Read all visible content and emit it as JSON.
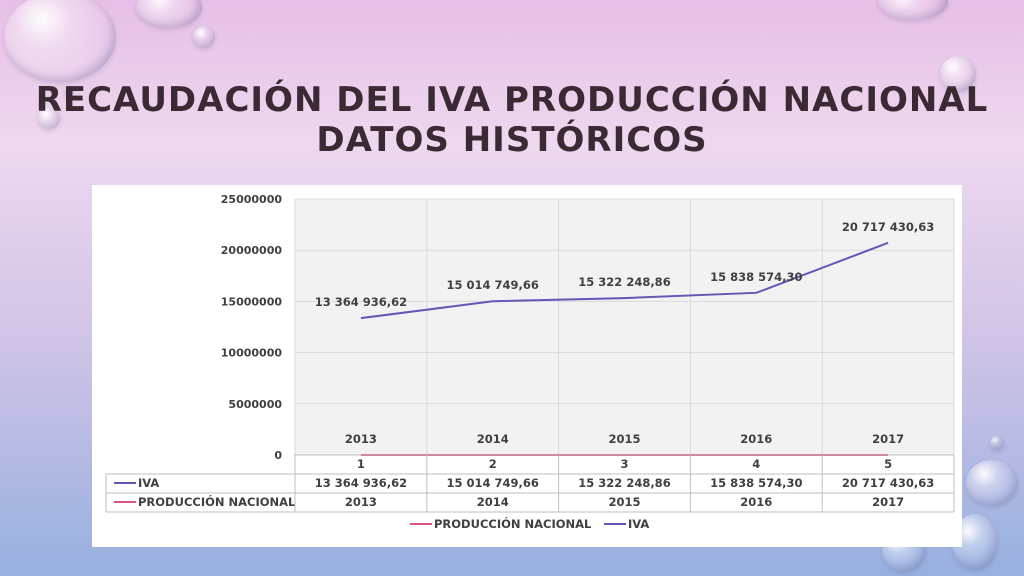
{
  "slide": {
    "title_line1": "RECAUDACIÓN DEL IVA PRODUCCIÓN NACIONAL",
    "title_line2": "DATOS HISTÓRICOS"
  },
  "chart_data": {
    "type": "line",
    "categories": [
      "1",
      "2",
      "3",
      "4",
      "5"
    ],
    "x": [
      1,
      2,
      3,
      4,
      5
    ],
    "ylim": [
      0,
      25000000
    ],
    "yticks": [
      "0",
      "5000000",
      "10000000",
      "15000000",
      "20000000",
      "25000000"
    ],
    "ytick_values": [
      0,
      5000000,
      10000000,
      15000000,
      20000000,
      25000000
    ],
    "grid": true,
    "legend_position": "bottom",
    "series": [
      {
        "name": "IVA",
        "color": "#6a54b5",
        "values": [
          13364936.62,
          15014749.66,
          15322248.86,
          15838574.3,
          20717430.63
        ],
        "labels": [
          "13 364 936,62",
          "15 014 749,66",
          "15 322 248,86",
          "15 838 574,30",
          "20 717 430,63"
        ]
      },
      {
        "name": "PRODUCCIÓN NACIONAL",
        "color": "#d9577e",
        "values": [
          2013,
          2014,
          2015,
          2016,
          2017
        ],
        "labels": [
          "2013",
          "2014",
          "2015",
          "2016",
          "2017"
        ]
      }
    ],
    "table": {
      "rows": [
        {
          "name": "IVA",
          "cells": [
            "13 364 936,62",
            "15 014 749,66",
            "15 322 248,86",
            "15 838 574,30",
            "20 717 430,63"
          ]
        },
        {
          "name": "PRODUCCIÓN NACIONAL",
          "cells": [
            "2013",
            "2014",
            "2015",
            "2016",
            "2017"
          ]
        }
      ]
    },
    "legend": [
      "PRODUCCIÓN NACIONAL",
      "IVA"
    ]
  }
}
